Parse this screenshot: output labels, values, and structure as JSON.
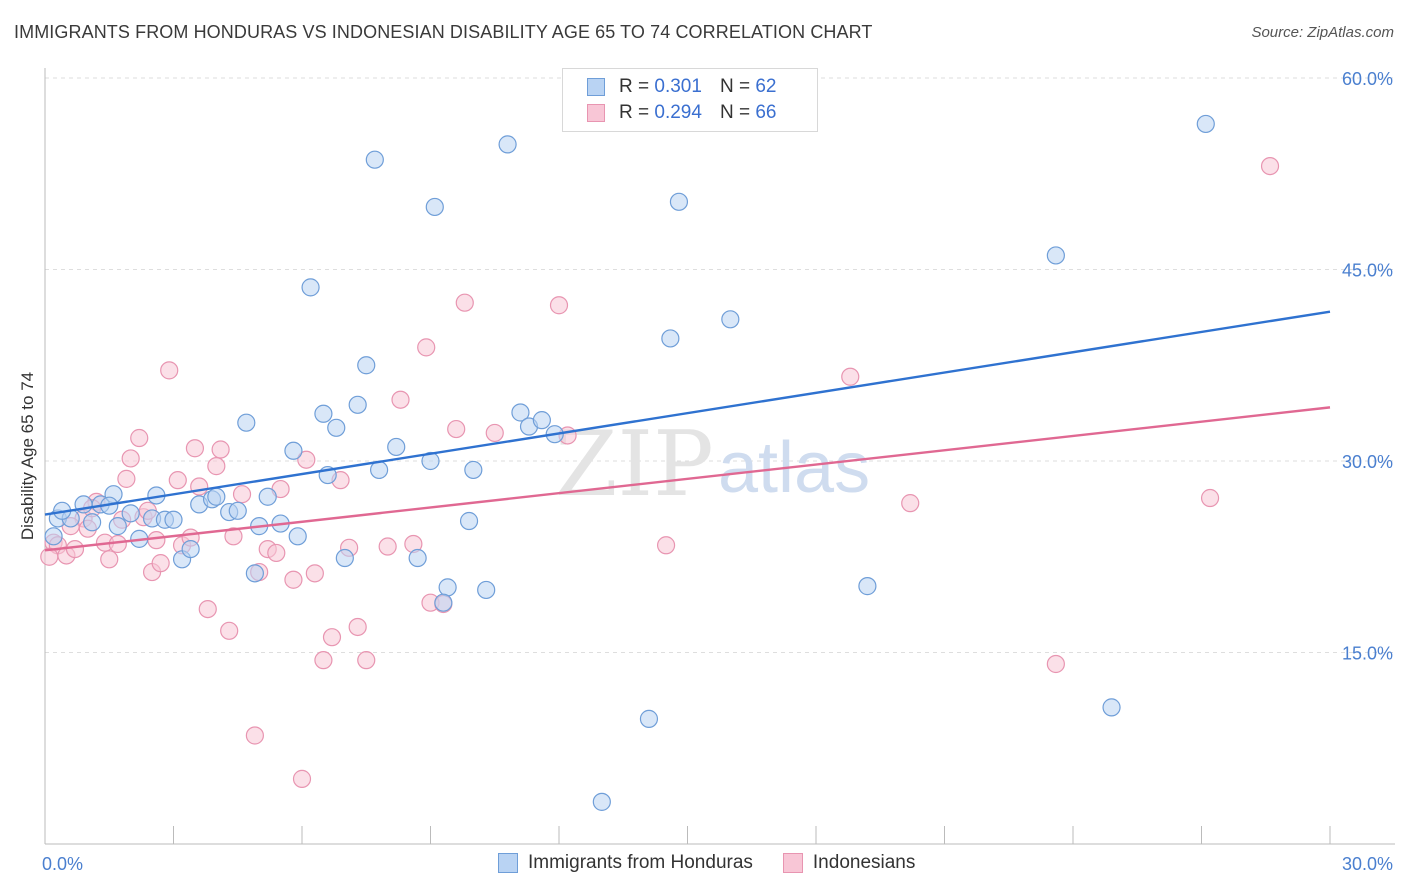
{
  "title": "IMMIGRANTS FROM HONDURAS VS INDONESIAN DISABILITY AGE 65 TO 74 CORRELATION CHART",
  "source": "Source: ZipAtlas.com",
  "watermark": {
    "zip": "ZIP",
    "atlas": "atlas"
  },
  "colors": {
    "blue_fill": "#b9d3f3",
    "blue_stroke": "#6f9ed8",
    "blue_line": "#2f72d0",
    "pink_fill": "#f8c6d6",
    "pink_stroke": "#e895b1",
    "pink_line": "#e06892",
    "tick_text": "#4a7fcf",
    "grid": "#dedede"
  },
  "legend_top": [
    {
      "r_label": "R =",
      "r_value": "0.301",
      "n_label": "N =",
      "n_value": "62",
      "swatch": "blue"
    },
    {
      "r_label": "R =",
      "r_value": "0.294",
      "n_label": "N =",
      "n_value": "66",
      "swatch": "pink"
    }
  ],
  "chart_data": {
    "type": "scatter",
    "title": "IMMIGRANTS FROM HONDURAS VS INDONESIAN DISABILITY AGE 65 TO 74 CORRELATION CHART",
    "xlabel": "",
    "ylabel": "Disability Age 65 to 74",
    "xlim": [
      0,
      30
    ],
    "ylim": [
      0,
      61
    ],
    "x_tick_labels": [
      "0.0%",
      "30.0%"
    ],
    "y_ticks": [
      15,
      30,
      45,
      60
    ],
    "y_tick_labels": [
      "15.0%",
      "30.0%",
      "45.0%",
      "60.0%"
    ],
    "grid": true,
    "legend_position": "bottom-center",
    "series": [
      {
        "name": "Immigrants from Honduras",
        "color": "blue",
        "trend": {
          "x": [
            0,
            30
          ],
          "y": [
            25.8,
            41.7
          ]
        },
        "points": [
          [
            0.3,
            25.5
          ],
          [
            0.6,
            25.5
          ],
          [
            0.9,
            26.6
          ],
          [
            1.1,
            25.2
          ],
          [
            1.3,
            26.6
          ],
          [
            1.6,
            27.4
          ],
          [
            1.7,
            24.9
          ],
          [
            2.0,
            25.9
          ],
          [
            2.2,
            23.9
          ],
          [
            2.5,
            25.5
          ],
          [
            2.6,
            27.3
          ],
          [
            2.8,
            25.4
          ],
          [
            3.0,
            25.4
          ],
          [
            3.2,
            22.3
          ],
          [
            3.4,
            23.1
          ],
          [
            3.6,
            26.6
          ],
          [
            3.9,
            27.0
          ],
          [
            4.0,
            27.2
          ],
          [
            4.3,
            26.0
          ],
          [
            4.5,
            26.1
          ],
          [
            4.7,
            33.0
          ],
          [
            4.9,
            21.2
          ],
          [
            5.0,
            24.9
          ],
          [
            5.2,
            27.2
          ],
          [
            5.5,
            25.1
          ],
          [
            5.8,
            30.8
          ],
          [
            5.9,
            24.1
          ],
          [
            6.2,
            43.6
          ],
          [
            6.5,
            33.7
          ],
          [
            6.6,
            28.9
          ],
          [
            6.8,
            32.6
          ],
          [
            7.0,
            22.4
          ],
          [
            7.3,
            34.4
          ],
          [
            7.5,
            37.5
          ],
          [
            7.8,
            29.3
          ],
          [
            7.7,
            53.6
          ],
          [
            8.2,
            31.1
          ],
          [
            8.7,
            22.4
          ],
          [
            9.0,
            30.0
          ],
          [
            9.1,
            49.9
          ],
          [
            9.4,
            20.1
          ],
          [
            9.3,
            18.9
          ],
          [
            10.0,
            29.3
          ],
          [
            9.9,
            25.3
          ],
          [
            10.3,
            19.9
          ],
          [
            10.8,
            54.8
          ],
          [
            11.1,
            33.8
          ],
          [
            11.3,
            32.7
          ],
          [
            11.6,
            33.2
          ],
          [
            11.9,
            32.1
          ],
          [
            13.0,
            3.3
          ],
          [
            14.1,
            9.8
          ],
          [
            14.6,
            39.6
          ],
          [
            14.8,
            50.3
          ],
          [
            16.0,
            41.1
          ],
          [
            19.2,
            20.2
          ],
          [
            23.6,
            46.1
          ],
          [
            24.9,
            10.7
          ],
          [
            27.1,
            56.4
          ],
          [
            0.2,
            24.1
          ],
          [
            0.4,
            26.1
          ],
          [
            1.5,
            26.5
          ]
        ]
      },
      {
        "name": "Indonesians",
        "color": "pink",
        "trend": {
          "x": [
            0,
            30
          ],
          "y": [
            23.0,
            34.2
          ]
        },
        "points": [
          [
            0.2,
            23.6
          ],
          [
            0.3,
            23.4
          ],
          [
            0.5,
            22.6
          ],
          [
            0.7,
            23.1
          ],
          [
            0.9,
            25.5
          ],
          [
            1.0,
            24.7
          ],
          [
            1.2,
            26.8
          ],
          [
            1.4,
            23.6
          ],
          [
            1.5,
            22.3
          ],
          [
            1.7,
            23.5
          ],
          [
            1.9,
            28.6
          ],
          [
            2.0,
            30.2
          ],
          [
            2.2,
            31.8
          ],
          [
            2.3,
            25.6
          ],
          [
            2.5,
            21.3
          ],
          [
            2.6,
            23.8
          ],
          [
            2.7,
            22.0
          ],
          [
            2.9,
            37.1
          ],
          [
            3.1,
            28.5
          ],
          [
            3.2,
            23.4
          ],
          [
            3.5,
            31.0
          ],
          [
            3.8,
            18.4
          ],
          [
            4.0,
            29.6
          ],
          [
            4.1,
            30.9
          ],
          [
            4.3,
            16.7
          ],
          [
            4.6,
            27.4
          ],
          [
            4.9,
            8.5
          ],
          [
            5.0,
            21.3
          ],
          [
            5.2,
            23.1
          ],
          [
            5.5,
            27.8
          ],
          [
            5.8,
            20.7
          ],
          [
            6.0,
            5.1
          ],
          [
            6.1,
            30.1
          ],
          [
            6.3,
            21.2
          ],
          [
            6.5,
            14.4
          ],
          [
            6.7,
            16.2
          ],
          [
            6.9,
            28.5
          ],
          [
            7.1,
            23.2
          ],
          [
            7.3,
            17.0
          ],
          [
            7.5,
            14.4
          ],
          [
            8.0,
            23.3
          ],
          [
            8.3,
            34.8
          ],
          [
            8.6,
            23.5
          ],
          [
            8.9,
            38.9
          ],
          [
            9.0,
            18.9
          ],
          [
            9.3,
            18.8
          ],
          [
            9.6,
            32.5
          ],
          [
            9.8,
            42.4
          ],
          [
            10.5,
            32.2
          ],
          [
            12.0,
            42.2
          ],
          [
            12.2,
            32.0
          ],
          [
            14.5,
            23.4
          ],
          [
            18.8,
            36.6
          ],
          [
            20.2,
            26.7
          ],
          [
            23.6,
            14.1
          ],
          [
            27.2,
            27.1
          ],
          [
            28.6,
            53.1
          ],
          [
            0.1,
            22.5
          ],
          [
            0.6,
            24.9
          ],
          [
            1.1,
            26.3
          ],
          [
            1.8,
            25.4
          ],
          [
            2.4,
            26.1
          ],
          [
            3.4,
            24.0
          ],
          [
            3.6,
            28.0
          ],
          [
            4.4,
            24.1
          ],
          [
            5.4,
            22.8
          ]
        ]
      }
    ]
  }
}
